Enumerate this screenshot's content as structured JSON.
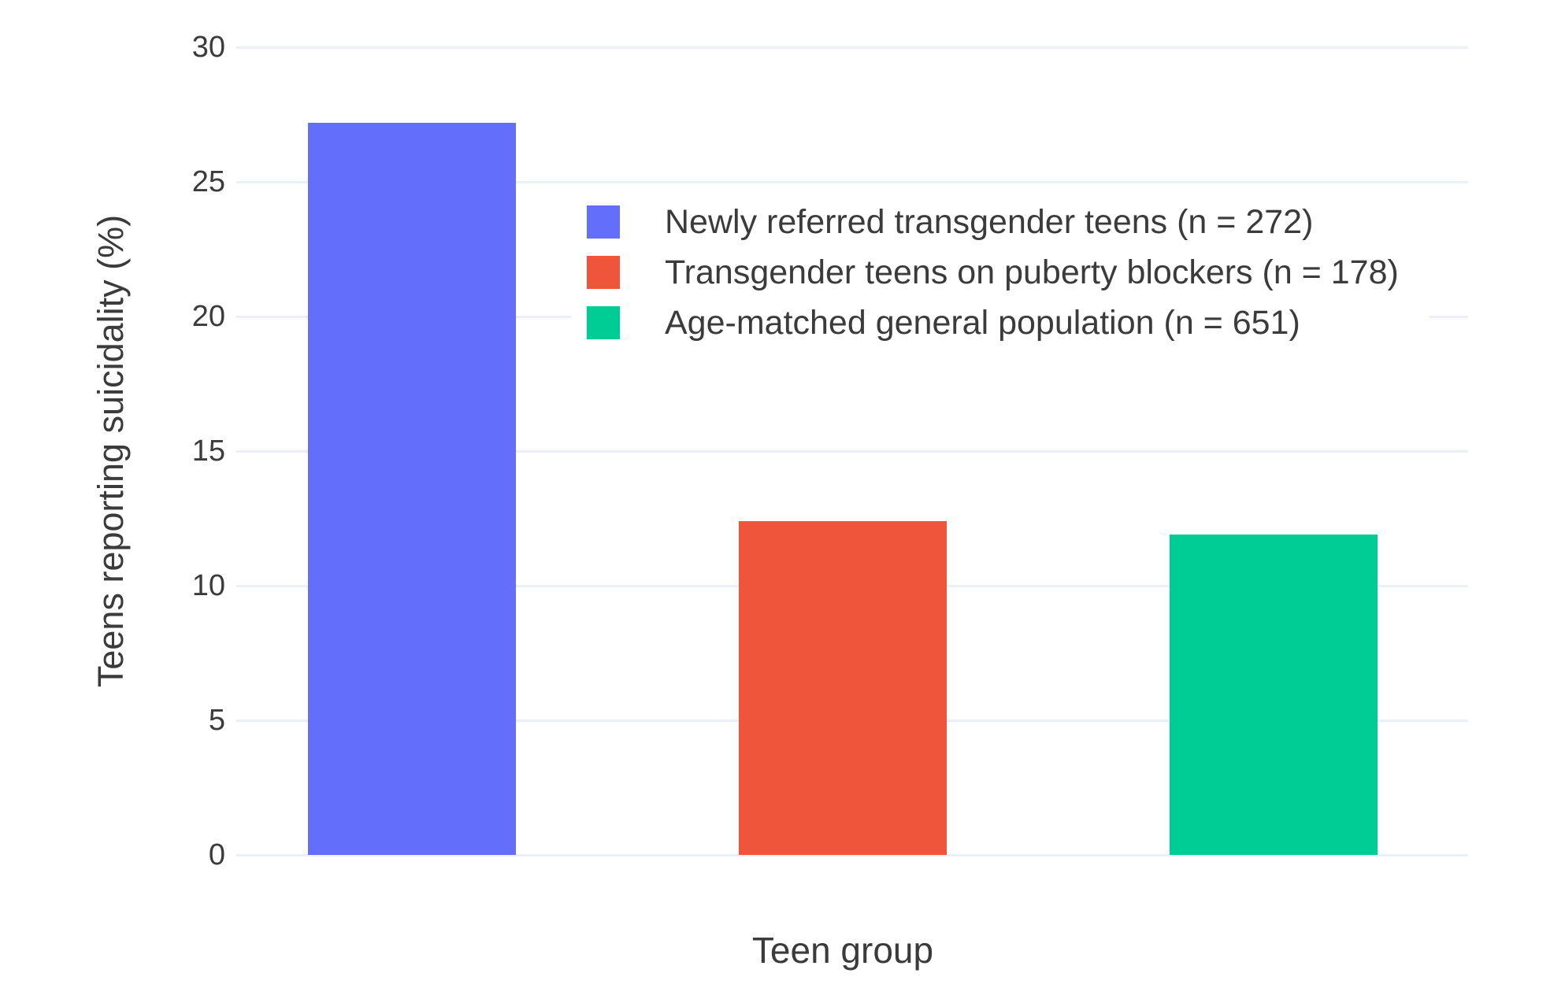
{
  "chart_data": {
    "type": "bar",
    "title": "",
    "xlabel": "Teen group",
    "ylabel": "Teens reporting suicidality (%)",
    "categories": [
      "Newly referred transgender teens (n = 272)",
      "Transgender teens on puberty blockers (n = 178)",
      "Age-matched general population (n = 651)"
    ],
    "values": [
      27.2,
      12.4,
      11.9
    ],
    "colors": [
      "#636EFA",
      "#EF553B",
      "#00CC96"
    ],
    "ylim": [
      0,
      30
    ],
    "yticks": [
      0,
      5,
      10,
      15,
      20,
      25,
      30
    ],
    "grid": true,
    "legend_position": "inside-top-center",
    "legend_entries": [
      {
        "label": "Newly referred transgender teens (n = 272)",
        "color": "#636EFA"
      },
      {
        "label": "Transgender teens on puberty blockers (n = 178)",
        "color": "#EF553B"
      },
      {
        "label": "Age-matched general population (n = 651)",
        "color": "#00CC96"
      }
    ]
  },
  "style_colors": {
    "background": "#ffffff",
    "gridline": "#EBF0F8",
    "text": "#3b3b3b"
  }
}
